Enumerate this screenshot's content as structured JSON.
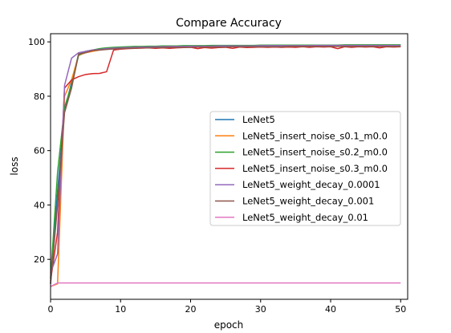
{
  "chart_data": {
    "type": "line",
    "title": "Compare Accuracy",
    "xlabel": "epoch",
    "ylabel": "loss",
    "xlim": [
      0,
      51
    ],
    "ylim": [
      5.3,
      103
    ],
    "xticks": [
      0,
      10,
      20,
      30,
      40,
      50
    ],
    "yticks": [
      20,
      40,
      60,
      80,
      100
    ],
    "grid": false,
    "legend_position": "center-right",
    "x": [
      0,
      1,
      2,
      3,
      4,
      5,
      6,
      7,
      8,
      9,
      10,
      11,
      12,
      13,
      14,
      15,
      16,
      17,
      18,
      19,
      20,
      21,
      22,
      23,
      24,
      25,
      26,
      27,
      28,
      29,
      30,
      31,
      32,
      33,
      34,
      35,
      36,
      37,
      38,
      39,
      40,
      41,
      42,
      43,
      44,
      45,
      46,
      47,
      48,
      49,
      50
    ],
    "series": [
      {
        "name": "LeNet5",
        "color": "#1f77b4",
        "values": [
          11,
          45,
          75,
          85,
          95.5,
          96.5,
          97,
          97.3,
          97.6,
          97.8,
          98,
          98,
          98.1,
          98.2,
          98.2,
          98.3,
          98.3,
          98.4,
          98.4,
          98.4,
          98.5,
          98.5,
          98.5,
          98.5,
          98.5,
          98.6,
          98.6,
          98.6,
          98.6,
          98.6,
          98.6,
          98.7,
          98.7,
          98.7,
          98.7,
          98.7,
          98.7,
          98.7,
          98.7,
          98.7,
          98.8,
          98.8,
          98.8,
          98.8,
          98.8,
          98.8,
          98.8,
          98.8,
          98.8,
          98.8,
          98.8
        ]
      },
      {
        "name": "LeNet5_insert_noise_s0.1_m0.0",
        "color": "#ff7f0e",
        "values": [
          10,
          11,
          80,
          86,
          95,
          96,
          96.5,
          97,
          97.3,
          97.5,
          97.6,
          97.7,
          97.8,
          97.9,
          98,
          98,
          98.1,
          98.1,
          98.2,
          98.2,
          98.2,
          98.2,
          98.3,
          98.3,
          98.3,
          98.3,
          98.3,
          98.4,
          98.4,
          98.4,
          98.4,
          98.4,
          98.4,
          98.4,
          98.5,
          98.5,
          98.5,
          98.5,
          98.5,
          98.5,
          98.5,
          98.5,
          98.5,
          98.6,
          98.6,
          98.6,
          98.6,
          98.6,
          98.6,
          98.6,
          98.6
        ]
      },
      {
        "name": "LeNet5_insert_noise_s0.2_m0.0",
        "color": "#2ca02c",
        "values": [
          13,
          52,
          76,
          84,
          95,
          96.5,
          97,
          97.5,
          97.8,
          98,
          98.1,
          98.2,
          98.3,
          98.3,
          98.4,
          98.4,
          98.5,
          98.5,
          98.5,
          98.6,
          98.6,
          98.6,
          98.6,
          98.7,
          98.7,
          98.7,
          98.7,
          98.7,
          98.7,
          98.7,
          98.8,
          98.8,
          98.8,
          98.8,
          98.8,
          98.8,
          98.8,
          98.8,
          98.8,
          98.8,
          98.8,
          98.8,
          98.9,
          98.9,
          98.9,
          98.9,
          98.9,
          98.9,
          98.9,
          98.9,
          98.9
        ]
      },
      {
        "name": "LeNet5_insert_noise_s0.3_m0.0",
        "color": "#d62728",
        "values": [
          12,
          30,
          83,
          86,
          87.2,
          88,
          88.3,
          88.4,
          89,
          97,
          97.3,
          97.5,
          97.6,
          97.7,
          97.8,
          97.6,
          97.8,
          97.6,
          97.8,
          97.9,
          98,
          97.5,
          97.9,
          97.7,
          97.9,
          98,
          97.6,
          98.1,
          97.9,
          98,
          98.1,
          98,
          98.1,
          98,
          98.1,
          98,
          98.2,
          98,
          98.2,
          98.1,
          98.2,
          97.5,
          98.2,
          98,
          98.2,
          98.1,
          98.2,
          97.8,
          98.2,
          98.1,
          98.2
        ]
      },
      {
        "name": "LeNet5_weight_decay_0.0001",
        "color": "#9467bd",
        "values": [
          15,
          22,
          84,
          94,
          96,
          96.5,
          97,
          97.2,
          97.5,
          97.7,
          97.8,
          97.9,
          98,
          98.1,
          98.1,
          98.2,
          98.2,
          98.3,
          98.3,
          98.3,
          98.4,
          98.4,
          98.4,
          98.4,
          98.5,
          98.5,
          98.5,
          98.5,
          98.5,
          98.5,
          98.6,
          98.6,
          98.6,
          98.6,
          98.6,
          98.6,
          98.6,
          98.6,
          98.7,
          98.7,
          98.7,
          98.7,
          98.7,
          98.7,
          98.7,
          98.7,
          98.7,
          98.7,
          98.7,
          98.7,
          98.7
        ]
      },
      {
        "name": "LeNet5_weight_decay_0.001",
        "color": "#8c564b",
        "values": [
          11,
          40,
          74,
          83,
          95.5,
          96,
          96.8,
          97,
          97.2,
          97.4,
          97.5,
          97.6,
          97.7,
          97.8,
          97.8,
          97.9,
          97.9,
          98,
          98,
          98,
          98,
          98.1,
          98.1,
          98.1,
          98.1,
          98.1,
          98.2,
          98.2,
          98.2,
          98.2,
          98.2,
          98.2,
          98.2,
          98.2,
          98.3,
          98.3,
          98.3,
          98.3,
          98.3,
          98.3,
          98.3,
          98.3,
          98.3,
          98.3,
          98.3,
          98.3,
          98.3,
          98.3,
          98.3,
          98.3,
          98.3
        ]
      },
      {
        "name": "LeNet5_weight_decay_0.01",
        "color": "#e377c2",
        "values": [
          10,
          11.3,
          11.3,
          11.3,
          11.3,
          11.3,
          11.3,
          11.3,
          11.3,
          11.3,
          11.3,
          11.3,
          11.3,
          11.3,
          11.3,
          11.3,
          11.3,
          11.3,
          11.3,
          11.3,
          11.3,
          11.3,
          11.3,
          11.3,
          11.3,
          11.3,
          11.3,
          11.3,
          11.3,
          11.3,
          11.3,
          11.3,
          11.3,
          11.3,
          11.3,
          11.3,
          11.3,
          11.3,
          11.3,
          11.3,
          11.3,
          11.3,
          11.3,
          11.3,
          11.3,
          11.3,
          11.3,
          11.3,
          11.3,
          11.3,
          11.3
        ]
      }
    ]
  }
}
